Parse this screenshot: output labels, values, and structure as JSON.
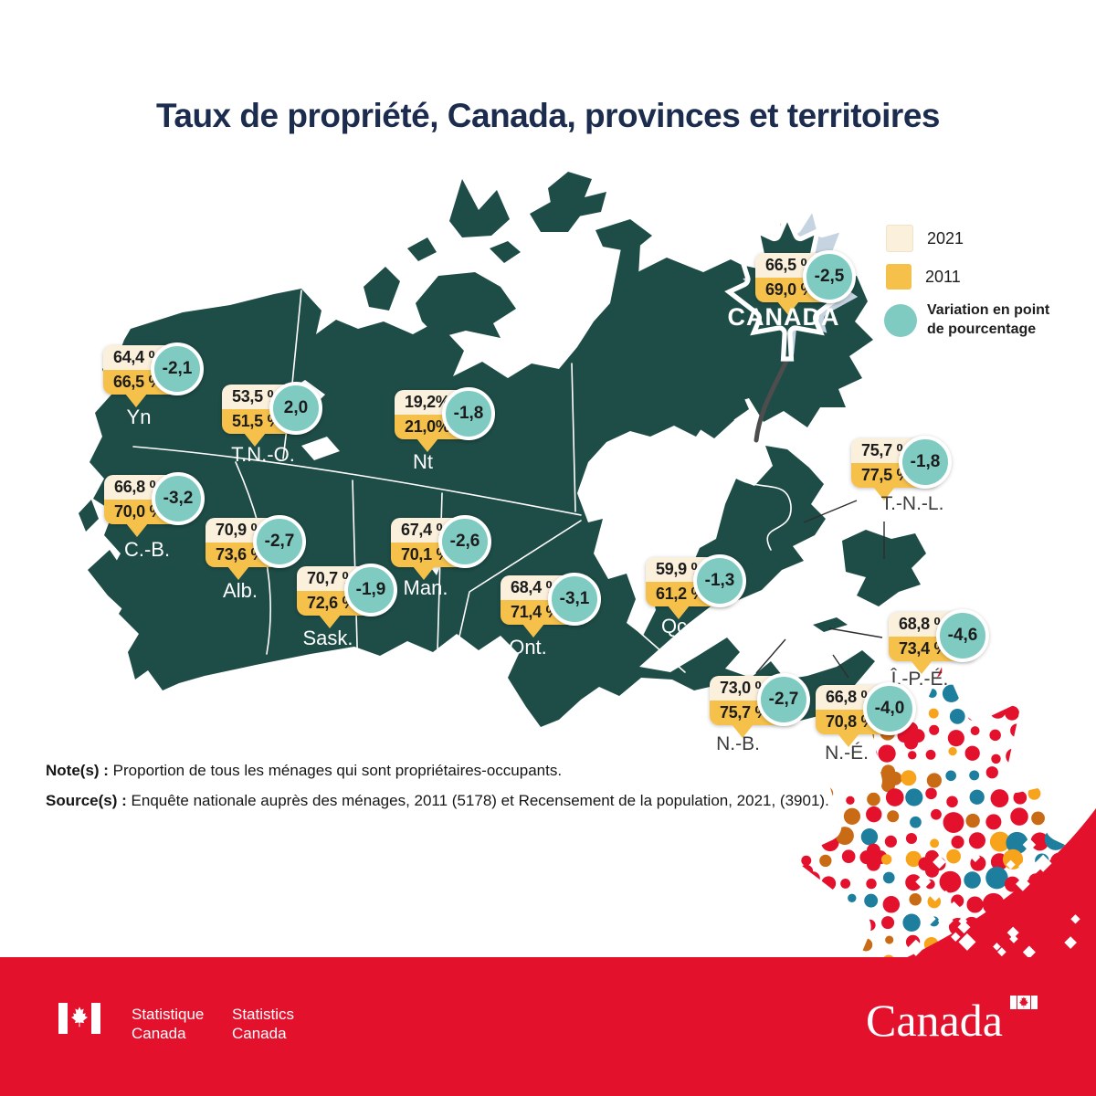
{
  "title": "Taux de propriété, Canada, provinces et territoires",
  "legend": {
    "items": [
      {
        "id": "2021",
        "label": "2021",
        "color": "#FAF0DB"
      },
      {
        "id": "2011",
        "label": "2011",
        "color": "#F5C14B"
      },
      {
        "id": "variation",
        "label": "Variation en point de pourcentage",
        "color": "#7FCBC2"
      }
    ]
  },
  "canada": {
    "label": "CANADA",
    "v2021": "66,5 %",
    "v2011": "69,0 %",
    "change": "-2,5"
  },
  "regions": [
    {
      "id": "yn",
      "label": "Yn",
      "v2021": "64,4 %",
      "v2011": "66,5 %",
      "change": "-2,1"
    },
    {
      "id": "tno",
      "label": "T.N.-O.",
      "v2021": "53,5 %",
      "v2011": "51,5 %",
      "change": "2,0"
    },
    {
      "id": "nt",
      "label": "Nt",
      "v2021": "19,2%",
      "v2011": "21,0%",
      "change": "-1,8"
    },
    {
      "id": "cb",
      "label": "C.-B.",
      "v2021": "66,8 %",
      "v2011": "70,0 %",
      "change": "-3,2"
    },
    {
      "id": "alb",
      "label": "Alb.",
      "v2021": "70,9 %",
      "v2011": "73,6 %",
      "change": "-2,7"
    },
    {
      "id": "sask",
      "label": "Sask.",
      "v2021": "70,7 %",
      "v2011": "72,6 %",
      "change": "-1,9"
    },
    {
      "id": "man",
      "label": "Man.",
      "v2021": "67,4 %",
      "v2011": "70,1 %",
      "change": "-2,6"
    },
    {
      "id": "ont",
      "label": "Ont.",
      "v2021": "68,4 %",
      "v2011": "71,4 %",
      "change": "-3,1"
    },
    {
      "id": "qc",
      "label": "Qc",
      "v2021": "59,9 %",
      "v2011": "61,2 %",
      "change": "-1,3"
    },
    {
      "id": "tnl",
      "label": "T.-N.-L.",
      "v2021": "75,7 %",
      "v2011": "77,5 %",
      "change": "-1,8"
    },
    {
      "id": "ipe",
      "label": "Î.-P.-É.",
      "v2021": "68,8 %",
      "v2011": "73,4 %",
      "change": "-4,6"
    },
    {
      "id": "nb",
      "label": "N.-B.",
      "v2021": "73,0 %",
      "v2011": "75,7 %",
      "change": "-2,7"
    },
    {
      "id": "ne",
      "label": "N.-É.",
      "v2021": "66,8 %",
      "v2011": "70,8 %",
      "change": "-4,0"
    }
  ],
  "notes": {
    "note_label": "Note(s) :",
    "note_text": " Proportion de tous les ménages qui sont propriétaires-occupants.",
    "source_label": "Source(s) :",
    "source_text": " Enquête nationale auprès des ménages, 2011 (5178) et Recensement de la population, 2021, (3901)."
  },
  "footer": {
    "agency_fr_line1": "Statistique",
    "agency_fr_line2": "Canada",
    "agency_en_line1": "Statistics",
    "agency_en_line2": "Canada",
    "wordmark": "Canada"
  },
  "colors": {
    "map_green": "#1E4C47",
    "cream_2021": "#FAF0DB",
    "gold_2011": "#F5C14B",
    "teal_variation": "#7FCBC2",
    "title_navy": "#1B2C4E",
    "footer_red": "#E4112D",
    "dot_red": "#E4112D",
    "dot_teal": "#1E7E9E",
    "dot_orange": "#F7A31C",
    "dot_rust": "#C96A15",
    "leaf_shadow": "#C6D4E1"
  }
}
